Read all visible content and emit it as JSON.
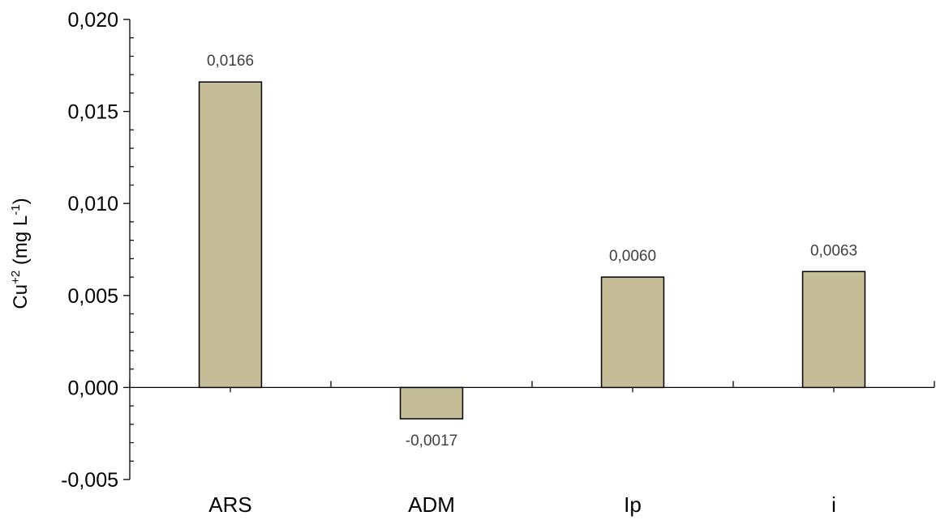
{
  "chart_data": {
    "type": "bar",
    "categories": [
      "ARS",
      "ADM",
      "Ip",
      "i"
    ],
    "values": [
      0.0166,
      -0.0017,
      0.006,
      0.0063
    ],
    "data_labels": [
      "0,0166",
      "-0,0017",
      "0,0060",
      "0,0063"
    ],
    "ylabel": {
      "base": "Cu",
      "sup": "+2",
      "mid": " (mg L",
      "sup2": "-1",
      "end": ")"
    },
    "ylim": [
      -0.005,
      0.02
    ],
    "y_ticks": [
      {
        "value": 0.02,
        "label": "0,020"
      },
      {
        "value": 0.015,
        "label": "0,015"
      },
      {
        "value": 0.01,
        "label": "0,010"
      },
      {
        "value": 0.005,
        "label": "0,005"
      },
      {
        "value": 0.0,
        "label": "0,000"
      },
      {
        "value": -0.005,
        "label": "-0,005"
      }
    ],
    "grid": false,
    "colors": {
      "bar_fill": "#c5bd97",
      "bar_stroke": "#000000",
      "data_label": "#404040"
    }
  }
}
